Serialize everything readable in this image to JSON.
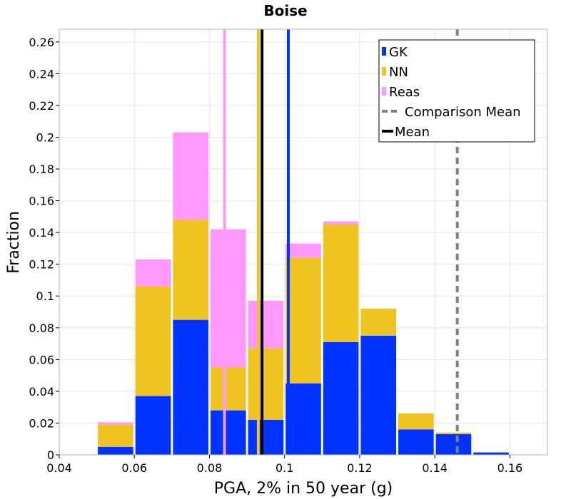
{
  "chart_data": {
    "type": "bar",
    "stacked": true,
    "title": "Boise",
    "xlabel": "PGA, 2% in 50 year (g)",
    "ylabel": "Fraction",
    "xlim": [
      0.04,
      0.17
    ],
    "ylim": [
      0,
      0.268
    ],
    "x_ticks": [
      "0.04",
      "0.06",
      "0.08",
      "0.1",
      "0.12",
      "0.14",
      "0.16"
    ],
    "x_tick_values": [
      0.04,
      0.06,
      0.08,
      0.1,
      0.12,
      0.14,
      0.16
    ],
    "y_ticks": [
      "0",
      "0.02",
      "0.04",
      "0.06",
      "0.08",
      "0.1",
      "0.12",
      "0.14",
      "0.16",
      "0.18",
      "0.2",
      "0.22",
      "0.24",
      "0.26"
    ],
    "y_tick_values": [
      0,
      0.02,
      0.04,
      0.06,
      0.08,
      0.1,
      0.12,
      0.14,
      0.16,
      0.18,
      0.2,
      0.22,
      0.24,
      0.26
    ],
    "bin_width": 0.01,
    "bin_centers": [
      0.045,
      0.055,
      0.065,
      0.075,
      0.085,
      0.095,
      0.105,
      0.115,
      0.125,
      0.135,
      0.145,
      0.155,
      0.165
    ],
    "series": [
      {
        "name": "GK",
        "color": "#0033ff",
        "values": [
          0,
          0.005,
          0.037,
          0.085,
          0.028,
          0.022,
          0.045,
          0.071,
          0.075,
          0.016,
          0.013,
          0.0015,
          0
        ]
      },
      {
        "name": "NN",
        "color": "#f0c420",
        "values": [
          0,
          0.014,
          0.069,
          0.063,
          0.027,
          0.045,
          0.079,
          0.074,
          0.017,
          0.01,
          0.001,
          0,
          0
        ]
      },
      {
        "name": "Reas",
        "color": "#ff99ff",
        "values": [
          0,
          0.0015,
          0.017,
          0.055,
          0.087,
          0.03,
          0.009,
          0.002,
          0,
          0,
          0,
          0,
          0
        ]
      }
    ],
    "mean_lines": [
      {
        "name": "GK",
        "x": 0.101,
        "color": "#0033ff",
        "style": "solid"
      },
      {
        "name": "NN",
        "x": 0.093,
        "color": "#f0c420",
        "style": "solid"
      },
      {
        "name": "Reas",
        "x": 0.084,
        "color": "#ff99ff",
        "style": "solid"
      },
      {
        "name": "Mean",
        "x": 0.094,
        "color": "#000000",
        "style": "solid"
      },
      {
        "name": "Comparison Mean",
        "x": 0.146,
        "color": "#808080",
        "style": "dashed"
      }
    ],
    "legend": {
      "position": "top-right",
      "entries": [
        {
          "label": "GK",
          "kind": "bar",
          "color": "#0033ff"
        },
        {
          "label": "NN",
          "kind": "bar",
          "color": "#f0c420"
        },
        {
          "label": "Reas",
          "kind": "bar",
          "color": "#ff99ff"
        },
        {
          "label": "Comparison Mean",
          "kind": "dashed-line",
          "color": "#808080"
        },
        {
          "label": "Mean",
          "kind": "line",
          "color": "#000000"
        }
      ]
    },
    "grid": true
  }
}
